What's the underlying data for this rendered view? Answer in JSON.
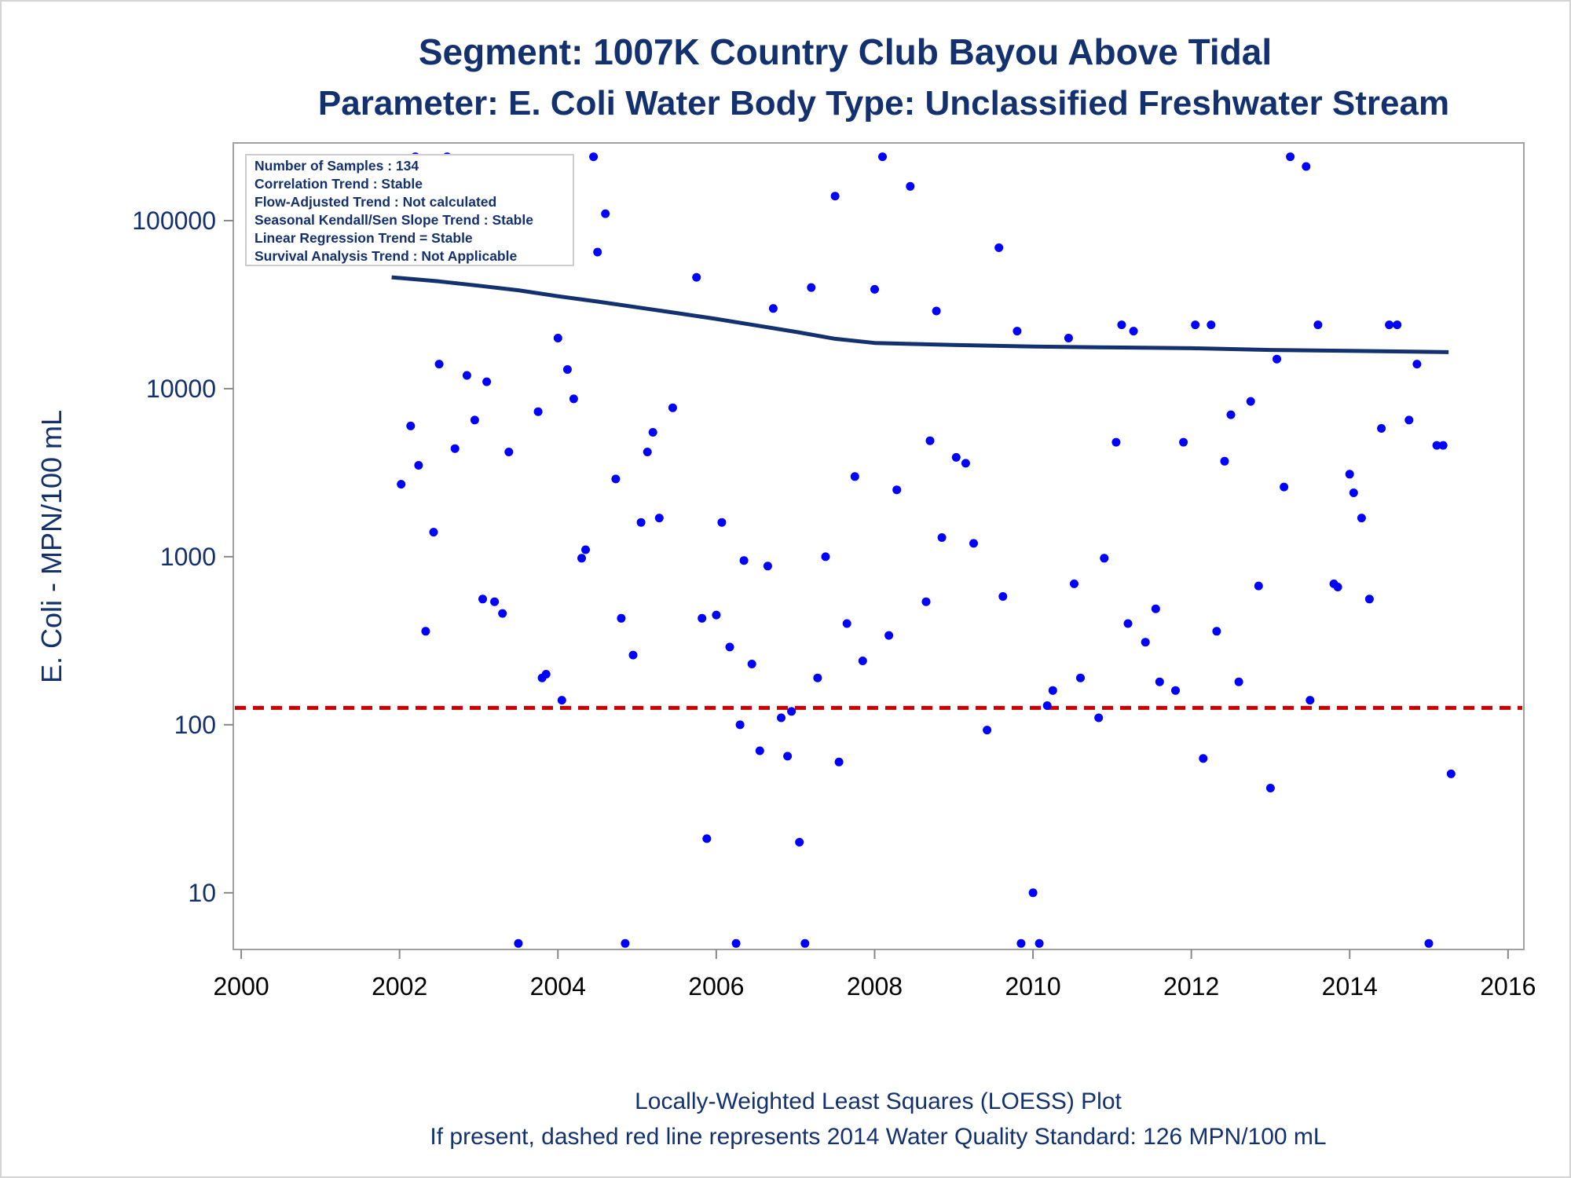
{
  "chart_data": {
    "type": "scatter",
    "title": "Segment: 1007K  Country Club Bayou Above Tidal",
    "subtitle": "Parameter: E. Coli   Water Body Type: Unclassified Freshwater Stream",
    "xlabel": "",
    "ylabel": "E. Coli - MPN/100 mL",
    "footnotes": [
      "Locally-Weighted Least Squares (LOESS) Plot",
      "If present, dashed red line represents 2014 Water Quality Standard: 126 MPN/100 mL"
    ],
    "y_scale": "log",
    "xlim": [
      1999.9,
      2016.2
    ],
    "ylim": [
      4.6,
      290000
    ],
    "x_ticks": [
      2000,
      2002,
      2004,
      2006,
      2008,
      2010,
      2012,
      2014,
      2016
    ],
    "x_tick_labels": [
      "2000",
      "2002",
      "2004",
      "2006",
      "2008",
      "2010",
      "2012",
      "2014",
      "2016"
    ],
    "y_ticks": [
      10,
      100,
      1000,
      10000,
      100000
    ],
    "y_tick_labels": [
      "10",
      "100",
      "1000",
      "10000",
      "100000"
    ],
    "grid": false,
    "stats_box": [
      "Number of Samples : 134",
      "Correlation Trend : Stable",
      "Flow-Adjusted Trend : Not calculated",
      "Seasonal Kendall/Sen Slope Trend : Stable",
      "Linear Regression Trend = Stable",
      "Survival Analysis Trend : Not Applicable"
    ],
    "standard_line": {
      "y": 126,
      "color": "#cc0000",
      "style": "dashed"
    },
    "loess_line": {
      "color": "#13306f",
      "points": [
        [
          2001.9,
          46000
        ],
        [
          2002.5,
          43500
        ],
        [
          2003.0,
          41000
        ],
        [
          2003.5,
          38500
        ],
        [
          2004.0,
          35500
        ],
        [
          2004.5,
          33000
        ],
        [
          2005.0,
          30500
        ],
        [
          2005.5,
          28200
        ],
        [
          2006.0,
          26000
        ],
        [
          2006.5,
          23800
        ],
        [
          2007.0,
          21800
        ],
        [
          2007.5,
          19800
        ],
        [
          2008.0,
          18700
        ],
        [
          2009.0,
          18200
        ],
        [
          2010.0,
          17800
        ],
        [
          2011.0,
          17600
        ],
        [
          2012.0,
          17400
        ],
        [
          2013.0,
          17000
        ],
        [
          2014.0,
          16800
        ],
        [
          2015.25,
          16500
        ]
      ]
    },
    "marker_color": "#0000ff",
    "series": [
      {
        "points": [
          [
            2001.9,
            200000
          ],
          [
            2002.2,
            240000
          ],
          [
            2002.6,
            240000
          ],
          [
            2003.0,
            160000
          ],
          [
            2003.65,
            170000
          ],
          [
            2004.45,
            240000
          ],
          [
            2004.6,
            110000
          ],
          [
            2004.5,
            65000
          ],
          [
            2003.5,
            63000
          ],
          [
            2002.02,
            2700
          ],
          [
            2002.14,
            6000
          ],
          [
            2002.24,
            3500
          ],
          [
            2002.33,
            360
          ],
          [
            2002.43,
            1400
          ],
          [
            2002.5,
            14000
          ],
          [
            2002.7,
            4400
          ],
          [
            2002.85,
            12000
          ],
          [
            2002.95,
            6500
          ],
          [
            2003.05,
            560
          ],
          [
            2003.1,
            11000
          ],
          [
            2003.2,
            540
          ],
          [
            2003.3,
            460
          ],
          [
            2003.38,
            4200
          ],
          [
            2003.5,
            5
          ],
          [
            2003.75,
            7300
          ],
          [
            2003.8,
            190
          ],
          [
            2003.85,
            200
          ],
          [
            2004.0,
            20000
          ],
          [
            2004.05,
            140
          ],
          [
            2004.12,
            13000
          ],
          [
            2004.2,
            8700
          ],
          [
            2004.3,
            980
          ],
          [
            2004.35,
            1100
          ],
          [
            2004.73,
            2900
          ],
          [
            2004.8,
            430
          ],
          [
            2004.85,
            5
          ],
          [
            2004.95,
            260
          ],
          [
            2005.05,
            1600
          ],
          [
            2005.13,
            4200
          ],
          [
            2005.2,
            5500
          ],
          [
            2005.28,
            1700
          ],
          [
            2005.45,
            7700
          ],
          [
            2005.75,
            46000
          ],
          [
            2005.82,
            430
          ],
          [
            2005.88,
            21
          ],
          [
            2006.0,
            450
          ],
          [
            2006.07,
            1600
          ],
          [
            2006.17,
            290
          ],
          [
            2006.25,
            5
          ],
          [
            2006.3,
            100
          ],
          [
            2006.35,
            950
          ],
          [
            2006.45,
            230
          ],
          [
            2006.55,
            70
          ],
          [
            2006.65,
            880
          ],
          [
            2006.72,
            30000
          ],
          [
            2006.82,
            110
          ],
          [
            2006.9,
            65
          ],
          [
            2006.95,
            120
          ],
          [
            2007.05,
            20
          ],
          [
            2007.12,
            5
          ],
          [
            2007.2,
            40000
          ],
          [
            2007.28,
            190
          ],
          [
            2007.38,
            1000
          ],
          [
            2007.5,
            140000
          ],
          [
            2007.55,
            60
          ],
          [
            2007.65,
            400
          ],
          [
            2007.75,
            3000
          ],
          [
            2007.85,
            240
          ],
          [
            2008.0,
            39000
          ],
          [
            2008.1,
            240000
          ],
          [
            2008.18,
            340
          ],
          [
            2008.28,
            2500
          ],
          [
            2008.45,
            160000
          ],
          [
            2008.65,
            540
          ],
          [
            2008.7,
            4900
          ],
          [
            2008.78,
            29000
          ],
          [
            2008.85,
            1300
          ],
          [
            2009.03,
            3900
          ],
          [
            2009.15,
            3600
          ],
          [
            2009.25,
            1200
          ],
          [
            2009.42,
            93
          ],
          [
            2009.57,
            69000
          ],
          [
            2009.62,
            580
          ],
          [
            2009.8,
            22000
          ],
          [
            2009.85,
            5
          ],
          [
            2010.0,
            10
          ],
          [
            2010.08,
            5
          ],
          [
            2010.18,
            130
          ],
          [
            2010.25,
            160
          ],
          [
            2010.45,
            20000
          ],
          [
            2010.52,
            690
          ],
          [
            2010.6,
            190
          ],
          [
            2010.83,
            110
          ],
          [
            2010.9,
            980
          ],
          [
            2011.05,
            4800
          ],
          [
            2011.12,
            24000
          ],
          [
            2011.2,
            400
          ],
          [
            2011.27,
            22000
          ],
          [
            2011.42,
            310
          ],
          [
            2011.55,
            490
          ],
          [
            2011.6,
            180
          ],
          [
            2011.8,
            160
          ],
          [
            2011.9,
            4800
          ],
          [
            2012.05,
            24000
          ],
          [
            2012.15,
            63
          ],
          [
            2012.25,
            24000
          ],
          [
            2012.32,
            360
          ],
          [
            2012.42,
            3700
          ],
          [
            2012.5,
            7000
          ],
          [
            2012.6,
            180
          ],
          [
            2012.75,
            8400
          ],
          [
            2012.85,
            670
          ],
          [
            2013.0,
            42
          ],
          [
            2013.08,
            15000
          ],
          [
            2013.17,
            2600
          ],
          [
            2013.25,
            240000
          ],
          [
            2013.45,
            210000
          ],
          [
            2013.5,
            140
          ],
          [
            2013.6,
            24000
          ],
          [
            2013.8,
            690
          ],
          [
            2013.85,
            660
          ],
          [
            2014.0,
            3100
          ],
          [
            2014.05,
            2400
          ],
          [
            2014.15,
            1700
          ],
          [
            2014.25,
            560
          ],
          [
            2014.4,
            5800
          ],
          [
            2014.5,
            24000
          ],
          [
            2014.6,
            24000
          ],
          [
            2014.75,
            6500
          ],
          [
            2014.85,
            14000
          ],
          [
            2015.0,
            5
          ],
          [
            2015.1,
            4600
          ],
          [
            2015.18,
            4600
          ],
          [
            2015.28,
            51
          ]
        ]
      }
    ]
  }
}
